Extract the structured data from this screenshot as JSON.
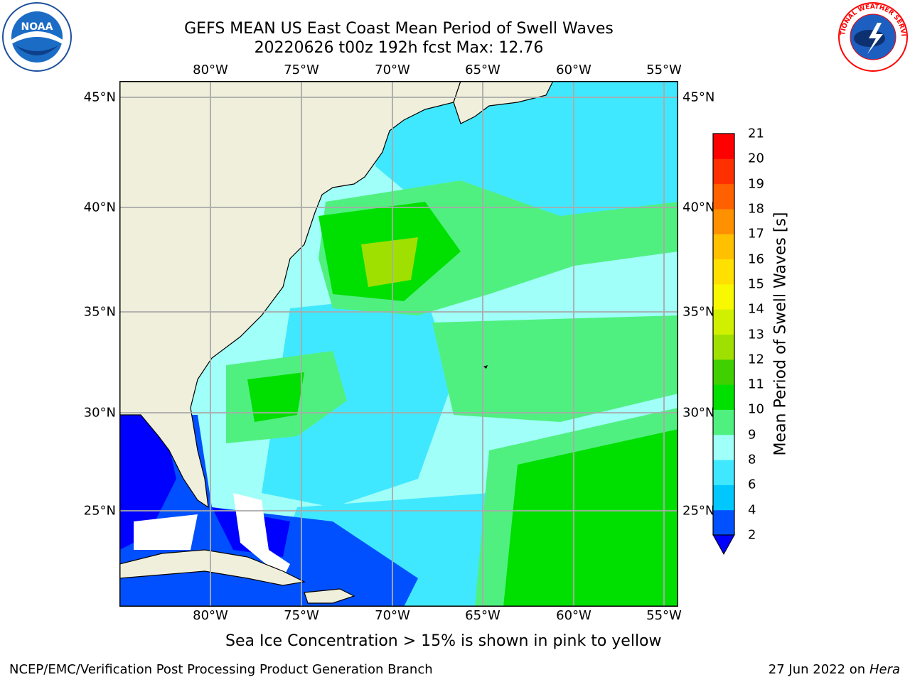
{
  "title": {
    "line1": "GEFS MEAN US East Coast Mean Period of Swell Waves",
    "line2": "20220626 t00z 192h fcst   Max: 12.76"
  },
  "axes": {
    "lon_labels": [
      "80°W",
      "75°W",
      "70°W",
      "65°W",
      "60°W",
      "55°W"
    ],
    "lat_labels": [
      "45°N",
      "40°N",
      "35°N",
      "30°N",
      "25°N"
    ]
  },
  "colorbar": {
    "title": "Mean Period of Swell Waves [s]",
    "ticks": [
      "2",
      "4",
      "6",
      "8",
      "9",
      "10",
      "11",
      "12",
      "13",
      "14",
      "15",
      "16",
      "17",
      "18",
      "19",
      "20",
      "21"
    ],
    "colors": [
      "#0050ff",
      "#00c8ff",
      "#40e8ff",
      "#a0fff8",
      "#50f080",
      "#00e000",
      "#40d000",
      "#a0e000",
      "#d0f000",
      "#f8f800",
      "#ffe000",
      "#ffc000",
      "#ff9000",
      "#ff6000",
      "#ff3000",
      "#ff0000"
    ],
    "under_color": "#0000ff"
  },
  "note": "Sea Ice Concentration > 15% is shown in pink to yellow",
  "footer": {
    "left": "NCEP/EMC/Verification Post Processing Product Generation Branch",
    "date": "27 Jun 2022 on",
    "machine": "Hera"
  },
  "logos": {
    "noaa_text": "NOAA",
    "nws_text": "NATIONAL WEATHER SERVICE"
  }
}
